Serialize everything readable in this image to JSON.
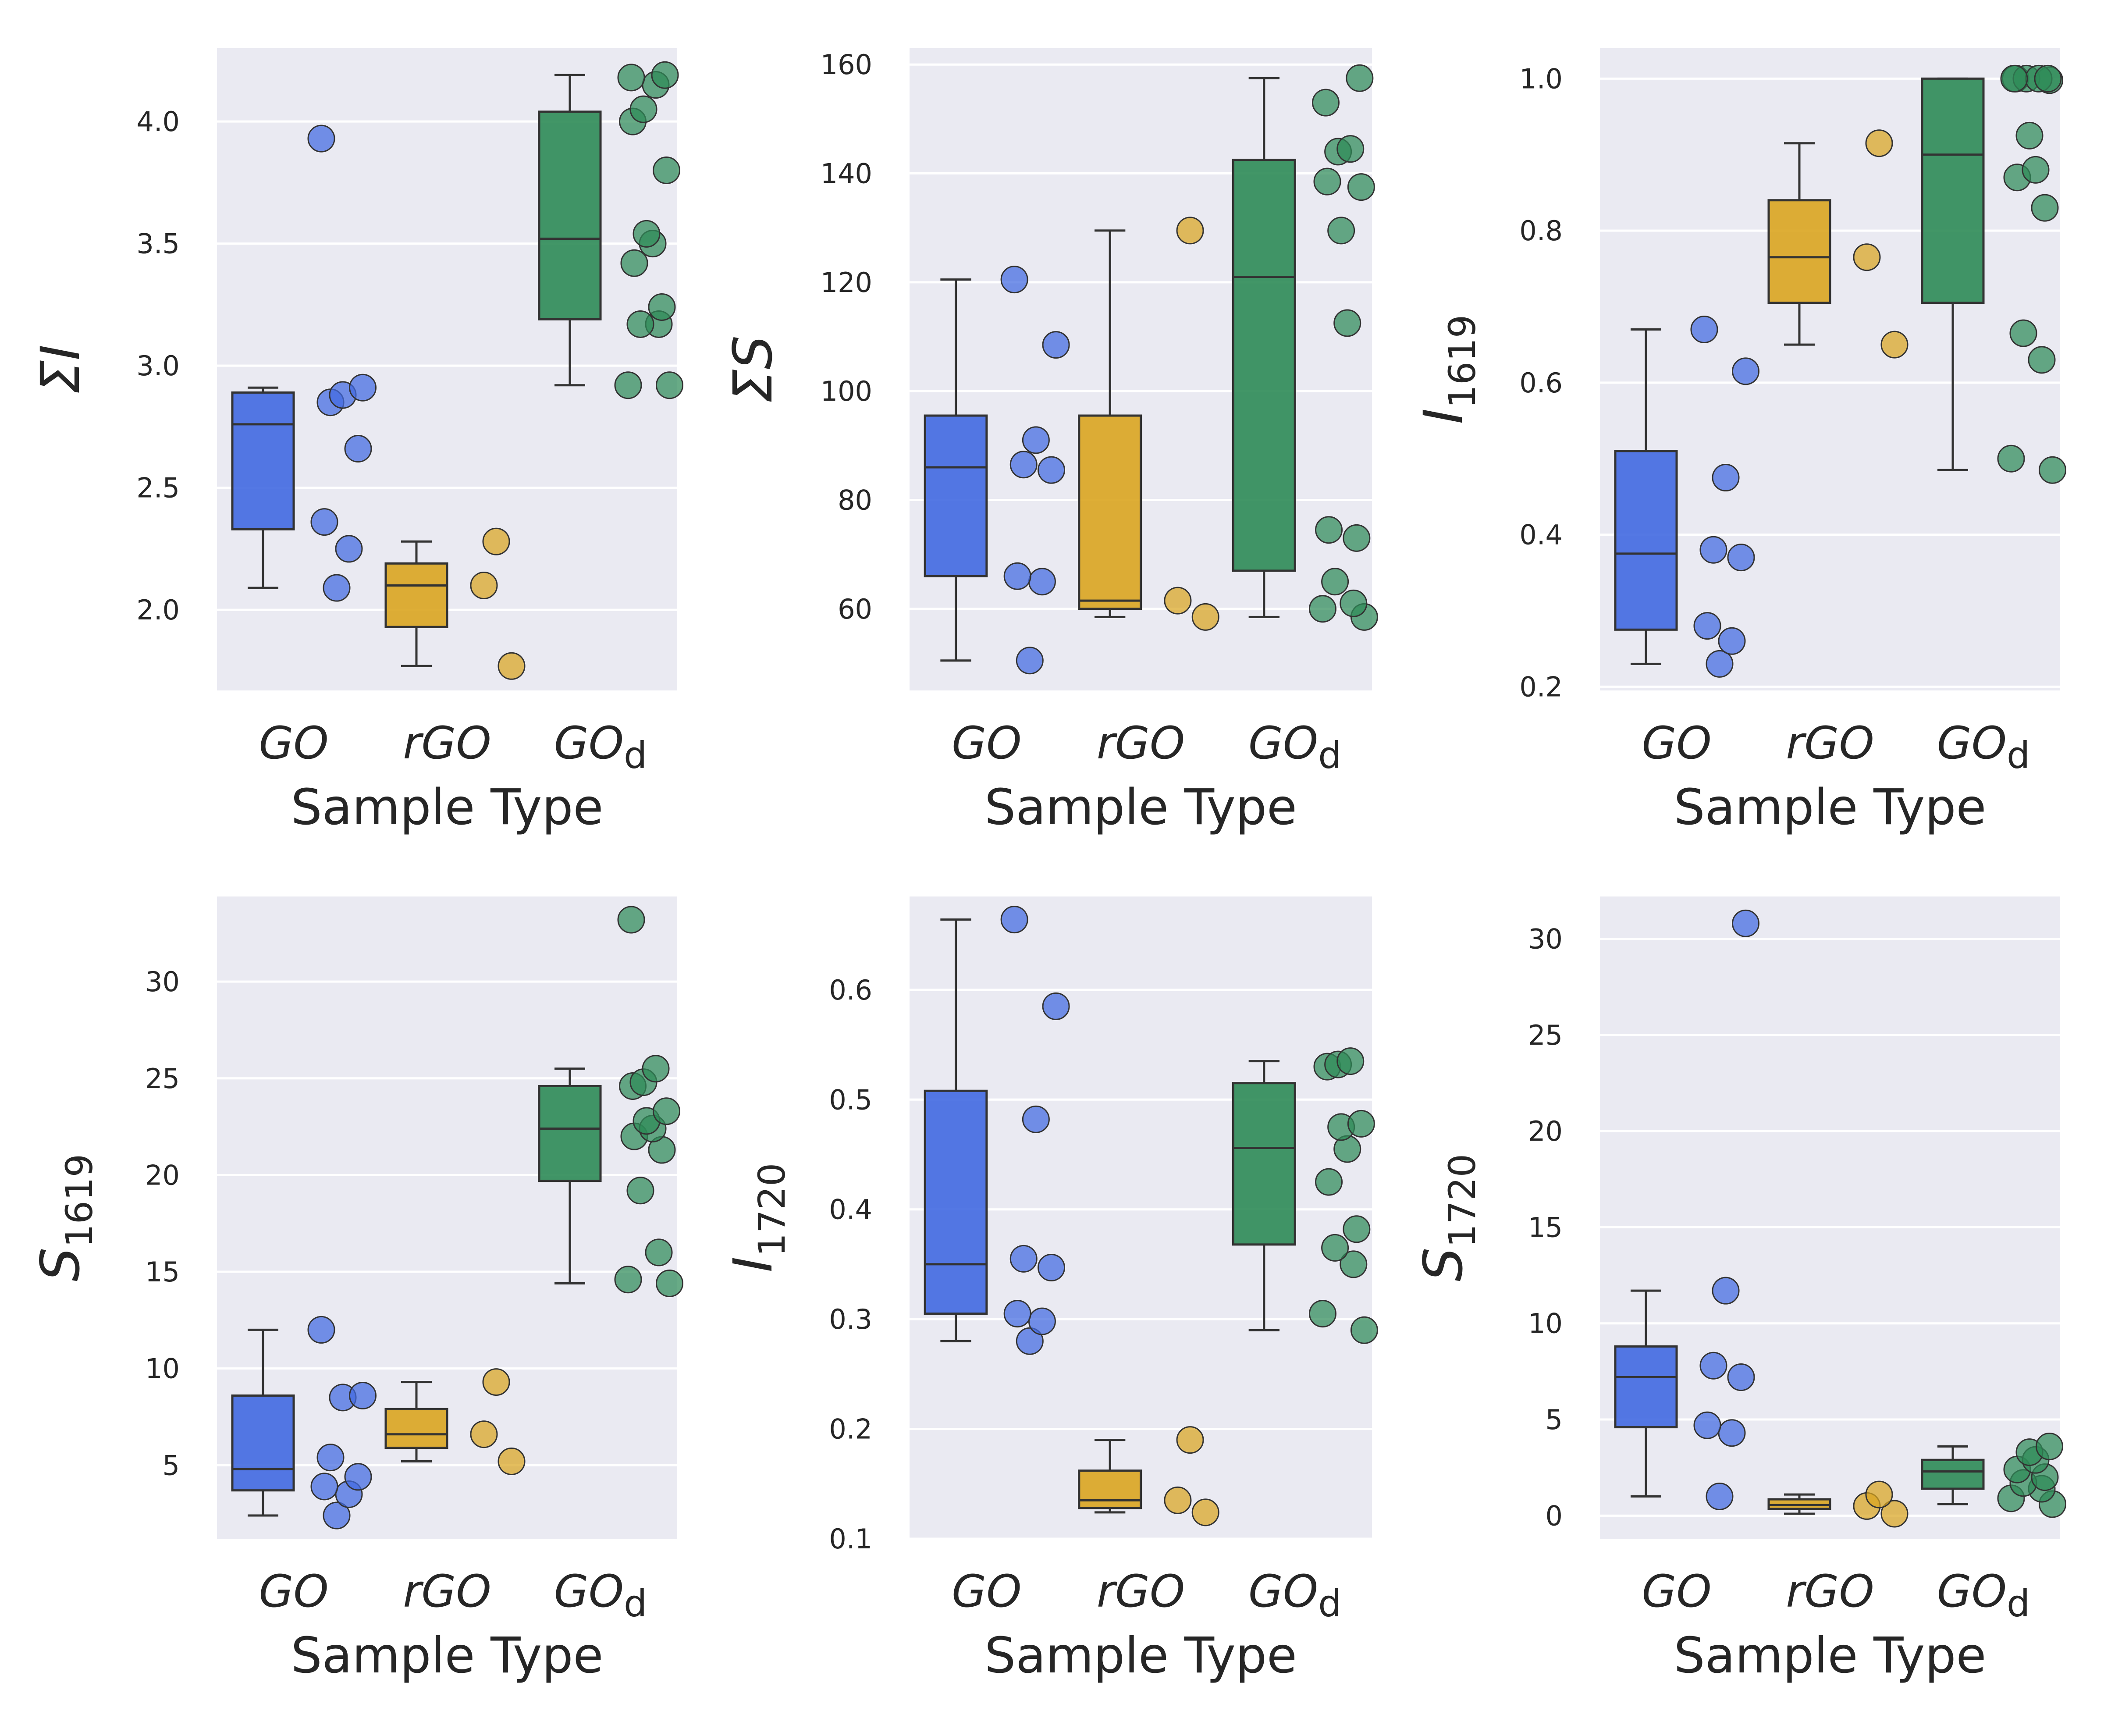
{
  "colors": {
    "background": "#eaeaf2",
    "grid": "#ffffff",
    "GO": "#4169e1",
    "rGO": "#daa520",
    "GOd": "#2e8b57",
    "edge": "#333333"
  },
  "chart_data": [
    {
      "type": "box",
      "title": "",
      "xlabel": "Sample Type",
      "ylabel": "ΣI",
      "ylim": [
        1.67,
        4.3
      ],
      "yticks": [
        2.0,
        2.5,
        3.0,
        3.5,
        4.0
      ],
      "ytick_labels": [
        "2.0",
        "2.5",
        "3.0",
        "3.5",
        "4.0"
      ],
      "categories": [
        "GO",
        "rGO",
        "GOd"
      ],
      "category_labels": [
        "GO",
        "rGO",
        "GO_d"
      ],
      "series": [
        {
          "category": "GO",
          "box": {
            "whislo": 2.09,
            "q1": 2.33,
            "med": 2.76,
            "q3": 2.89,
            "whishi": 2.91
          },
          "points": [
            2.09,
            2.25,
            2.36,
            2.66,
            2.85,
            2.88,
            2.91,
            3.93
          ]
        },
        {
          "category": "rGO",
          "box": {
            "whislo": 1.77,
            "q1": 1.93,
            "med": 2.1,
            "q3": 2.19,
            "whishi": 2.28
          },
          "points": [
            1.77,
            2.1,
            2.28
          ]
        },
        {
          "category": "GOd",
          "box": {
            "whislo": 2.92,
            "q1": 3.19,
            "med": 3.52,
            "q3": 4.04,
            "whishi": 4.19
          },
          "points": [
            2.92,
            2.92,
            3.17,
            3.17,
            3.24,
            3.42,
            3.5,
            3.54,
            3.8,
            4.0,
            4.05,
            4.15,
            4.18,
            4.19
          ]
        }
      ]
    },
    {
      "type": "box",
      "title": "",
      "xlabel": "Sample Type",
      "ylabel": "ΣS",
      "ylim": [
        45,
        163
      ],
      "yticks": [
        60,
        80,
        100,
        120,
        140,
        160
      ],
      "ytick_labels": [
        "60",
        "80",
        "100",
        "120",
        "140",
        "160"
      ],
      "categories": [
        "GO",
        "rGO",
        "GOd"
      ],
      "category_labels": [
        "GO",
        "rGO",
        "GO_d"
      ],
      "series": [
        {
          "category": "GO",
          "box": {
            "whislo": 50.5,
            "q1": 66,
            "med": 86,
            "q3": 95.5,
            "whishi": 120.5
          },
          "points": [
            50.5,
            65,
            66,
            85.5,
            86.5,
            91,
            108.5,
            120.5
          ]
        },
        {
          "category": "rGO",
          "box": {
            "whislo": 58.5,
            "q1": 60,
            "med": 61.5,
            "q3": 95.5,
            "whishi": 129.5
          },
          "points": [
            58.5,
            61.5,
            129.5
          ]
        },
        {
          "category": "GOd",
          "box": {
            "whislo": 58.5,
            "q1": 67,
            "med": 121,
            "q3": 142.5,
            "whishi": 157.5
          },
          "points": [
            58.5,
            60,
            61,
            65,
            73,
            74.5,
            112.5,
            129.5,
            137.5,
            138.5,
            144,
            144.5,
            153,
            157.5
          ]
        }
      ]
    },
    {
      "type": "box",
      "title": "",
      "xlabel": "Sample Type",
      "ylabel": "I",
      "ylabel_subscript": "1619",
      "ylim": [
        0.195,
        1.04
      ],
      "yticks": [
        0.2,
        0.4,
        0.6,
        0.8,
        1.0
      ],
      "ytick_labels": [
        "0.2",
        "0.4",
        "0.6",
        "0.8",
        "1.0"
      ],
      "categories": [
        "GO",
        "rGO",
        "GOd"
      ],
      "category_labels": [
        "GO",
        "rGO",
        "GO_d"
      ],
      "series": [
        {
          "category": "GO",
          "box": {
            "whislo": 0.23,
            "q1": 0.275,
            "med": 0.375,
            "q3": 0.51,
            "whishi": 0.67
          },
          "points": [
            0.23,
            0.26,
            0.28,
            0.37,
            0.38,
            0.475,
            0.615,
            0.67
          ]
        },
        {
          "category": "rGO",
          "box": {
            "whislo": 0.65,
            "q1": 0.705,
            "med": 0.765,
            "q3": 0.84,
            "whishi": 0.915
          },
          "points": [
            0.65,
            0.765,
            0.915
          ]
        },
        {
          "category": "GOd",
          "box": {
            "whislo": 0.485,
            "q1": 0.705,
            "med": 0.9,
            "q3": 1.0,
            "whishi": 1.0
          },
          "points": [
            0.485,
            0.5,
            0.63,
            0.665,
            0.83,
            0.87,
            0.88,
            0.925,
            0.998,
            1.0,
            1.0,
            1.0,
            1.0,
            1.0
          ]
        }
      ]
    },
    {
      "type": "box",
      "title": "",
      "xlabel": "Sample Type",
      "ylabel": "S",
      "ylabel_subscript": "1619",
      "ylim": [
        1.2,
        34.4
      ],
      "yticks": [
        5,
        10,
        15,
        20,
        25,
        30
      ],
      "ytick_labels": [
        "5",
        "10",
        "15",
        "20",
        "25",
        "30"
      ],
      "categories": [
        "GO",
        "rGO",
        "GOd"
      ],
      "category_labels": [
        "GO",
        "rGO",
        "GO_d"
      ],
      "series": [
        {
          "category": "GO",
          "box": {
            "whislo": 2.4,
            "q1": 3.7,
            "med": 4.8,
            "q3": 8.6,
            "whishi": 12.0
          },
          "points": [
            2.4,
            3.5,
            3.9,
            4.4,
            5.4,
            8.5,
            8.6,
            12.0
          ]
        },
        {
          "category": "rGO",
          "box": {
            "whislo": 5.2,
            "q1": 5.9,
            "med": 6.6,
            "q3": 7.9,
            "whishi": 9.3
          },
          "points": [
            5.2,
            6.6,
            9.3
          ]
        },
        {
          "category": "GOd",
          "box": {
            "whislo": 14.4,
            "q1": 19.7,
            "med": 22.4,
            "q3": 24.6,
            "whishi": 25.5
          },
          "points": [
            14.4,
            14.6,
            16.0,
            19.2,
            21.3,
            22.0,
            22.4,
            22.8,
            23.3,
            24.6,
            24.8,
            25.5,
            33.2
          ]
        }
      ]
    },
    {
      "type": "box",
      "title": "",
      "xlabel": "Sample Type",
      "ylabel": "I",
      "ylabel_subscript": "1720",
      "ylim": [
        0.1,
        0.685
      ],
      "yticks": [
        0.1,
        0.2,
        0.3,
        0.4,
        0.5,
        0.6
      ],
      "ytick_labels": [
        "0.1",
        "0.2",
        "0.3",
        "0.4",
        "0.5",
        "0.6"
      ],
      "categories": [
        "GO",
        "rGO",
        "GOd"
      ],
      "category_labels": [
        "GO",
        "rGO",
        "GO_d"
      ],
      "series": [
        {
          "category": "GO",
          "box": {
            "whislo": 0.28,
            "q1": 0.305,
            "med": 0.35,
            "q3": 0.508,
            "whishi": 0.664
          },
          "points": [
            0.28,
            0.298,
            0.305,
            0.347,
            0.355,
            0.482,
            0.585,
            0.664
          ]
        },
        {
          "category": "rGO",
          "box": {
            "whislo": 0.124,
            "q1": 0.128,
            "med": 0.135,
            "q3": 0.162,
            "whishi": 0.19
          },
          "points": [
            0.124,
            0.135,
            0.19
          ]
        },
        {
          "category": "GOd",
          "box": {
            "whislo": 0.29,
            "q1": 0.368,
            "med": 0.456,
            "q3": 0.515,
            "whishi": 0.535
          },
          "points": [
            0.29,
            0.305,
            0.35,
            0.365,
            0.382,
            0.425,
            0.455,
            0.475,
            0.478,
            0.53,
            0.532,
            0.535
          ]
        }
      ]
    },
    {
      "type": "box",
      "title": "",
      "xlabel": "Sample Type",
      "ylabel": "S",
      "ylabel_subscript": "1720",
      "ylim": [
        -1.2,
        32.2
      ],
      "yticks": [
        0,
        5,
        10,
        15,
        20,
        25,
        30
      ],
      "ytick_labels": [
        "0",
        "5",
        "10",
        "15",
        "20",
        "25",
        "30"
      ],
      "categories": [
        "GO",
        "rGO",
        "GOd"
      ],
      "category_labels": [
        "GO",
        "rGO",
        "GO_d"
      ],
      "series": [
        {
          "category": "GO",
          "box": {
            "whislo": 1.0,
            "q1": 4.6,
            "med": 7.2,
            "q3": 8.8,
            "whishi": 11.7
          },
          "points": [
            1.0,
            4.3,
            4.7,
            7.2,
            7.8,
            11.7,
            30.8
          ]
        },
        {
          "category": "rGO",
          "box": {
            "whislo": 0.1,
            "q1": 0.35,
            "med": 0.55,
            "q3": 0.85,
            "whishi": 1.1
          },
          "points": [
            0.1,
            0.5,
            1.1
          ]
        },
        {
          "category": "GOd",
          "box": {
            "whislo": 0.6,
            "q1": 1.4,
            "med": 2.3,
            "q3": 2.9,
            "whishi": 3.6
          },
          "points": [
            0.6,
            0.9,
            1.4,
            1.7,
            2.0,
            2.4,
            2.9,
            3.3,
            3.6
          ]
        }
      ]
    }
  ]
}
